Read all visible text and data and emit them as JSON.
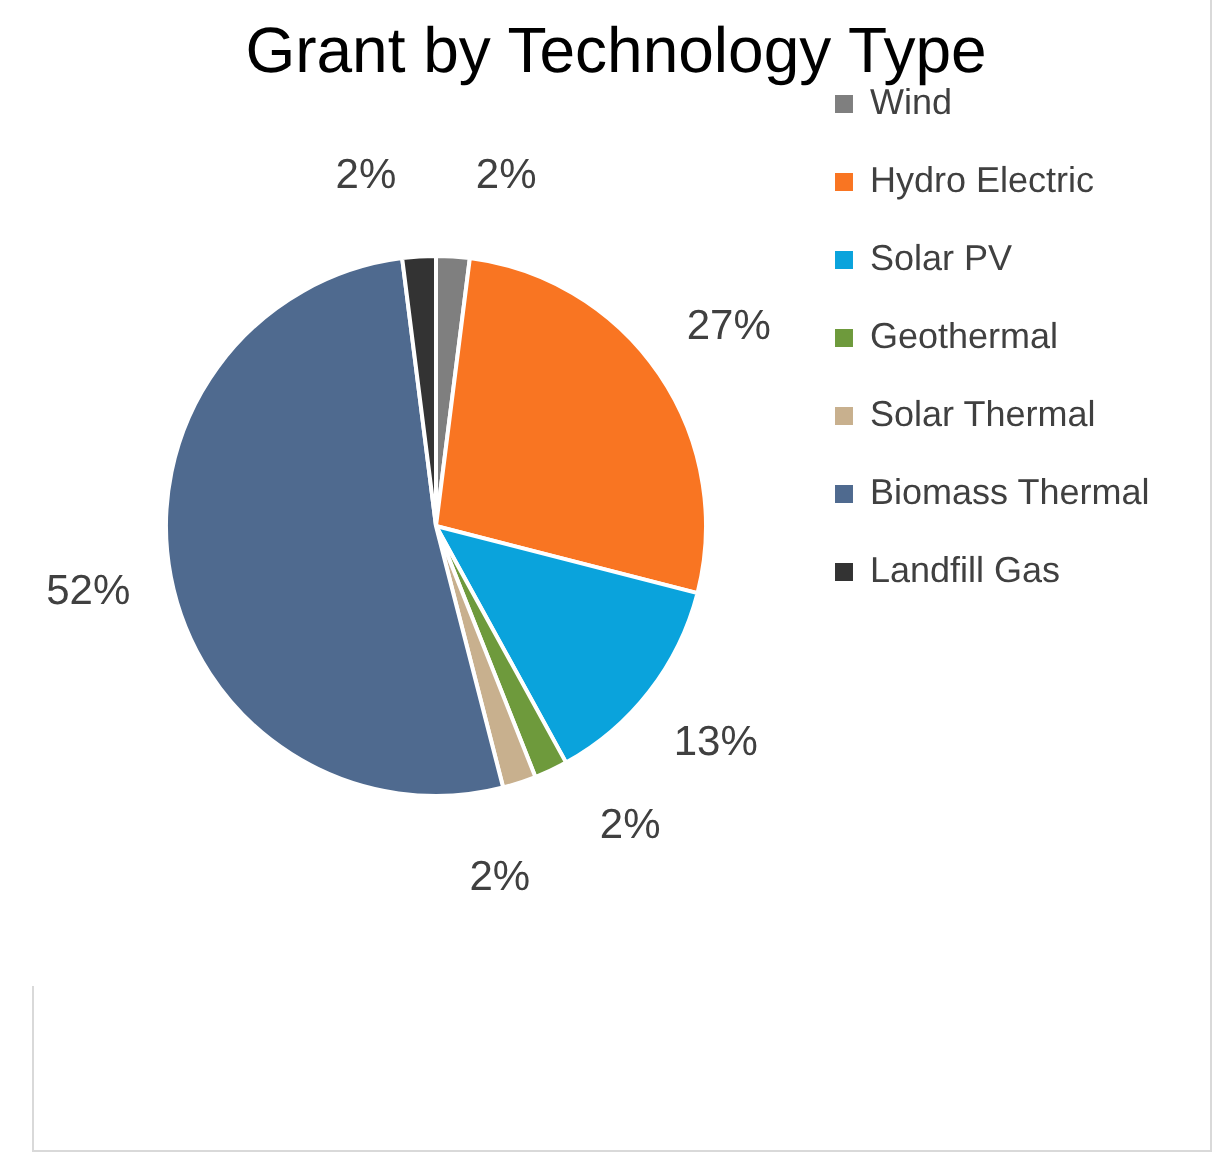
{
  "chart_data": {
    "type": "pie",
    "title": "Grant by Technology Type",
    "categories": [
      "Wind",
      "Hydro Electric",
      "Solar PV",
      "Geothermal",
      "Solar Thermal",
      "Biomass Thermal",
      "Landfill Gas"
    ],
    "values": [
      2,
      27,
      13,
      2,
      2,
      52,
      2
    ],
    "colors": [
      "#7f7f7f",
      "#f97522",
      "#0aa3dc",
      "#6e9a3c",
      "#c8b08e",
      "#4f6a8f",
      "#333333"
    ],
    "value_labels": [
      "2%",
      "27%",
      "13%",
      "2%",
      "2%",
      "52%",
      "2%"
    ],
    "legend": "right"
  }
}
